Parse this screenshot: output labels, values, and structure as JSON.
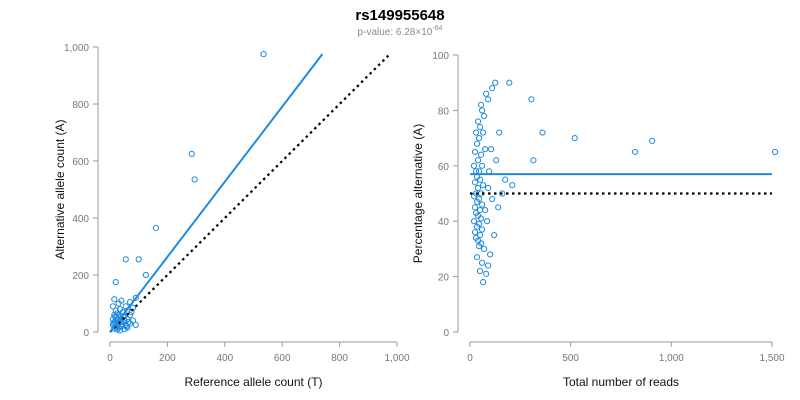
{
  "title": "rs149955648",
  "subtitle": {
    "prefix": "p-value: 6.28×10",
    "exponent": "-64"
  },
  "colors": {
    "points": "#1f8be0",
    "fit_line": "#1f8be0",
    "reference_line": "#000000",
    "axis": "#999999",
    "tick_label": "#777777"
  },
  "chart_data": [
    {
      "type": "scatter",
      "xlabel": "Reference allele count (T)",
      "ylabel": "Alternative allele count (A)",
      "xlim": [
        0,
        1000
      ],
      "ylim": [
        0,
        1000
      ],
      "xticks": [
        0,
        200,
        400,
        600,
        800,
        1000
      ],
      "xtick_labels": [
        "0",
        "200",
        "400",
        "600",
        "800",
        "1,000"
      ],
      "yticks": [
        0,
        200,
        400,
        600,
        800,
        1000
      ],
      "ytick_labels": [
        "0",
        "200",
        "400",
        "600",
        "800",
        "1,000"
      ],
      "grid": false,
      "fit_line": {
        "style": "solid",
        "x": [
          0,
          740
        ],
        "y": [
          0,
          975
        ]
      },
      "reference_line": {
        "style": "dotted",
        "x": [
          0,
          970
        ],
        "y": [
          0,
          970
        ]
      },
      "points": [
        [
          535,
          975
        ],
        [
          285,
          625
        ],
        [
          295,
          535
        ],
        [
          160,
          365
        ],
        [
          100,
          255
        ],
        [
          55,
          255
        ],
        [
          125,
          200
        ],
        [
          20,
          175
        ],
        [
          90,
          120
        ],
        [
          15,
          115
        ],
        [
          40,
          110
        ],
        [
          70,
          105
        ],
        [
          30,
          100
        ],
        [
          55,
          90
        ],
        [
          10,
          90
        ],
        [
          80,
          85
        ],
        [
          35,
          80
        ],
        [
          20,
          75
        ],
        [
          60,
          75
        ],
        [
          45,
          70
        ],
        [
          25,
          65
        ],
        [
          15,
          60
        ],
        [
          70,
          60
        ],
        [
          35,
          55
        ],
        [
          50,
          55
        ],
        [
          20,
          50
        ],
        [
          10,
          45
        ],
        [
          40,
          45
        ],
        [
          60,
          45
        ],
        [
          25,
          40
        ],
        [
          15,
          35
        ],
        [
          45,
          35
        ],
        [
          30,
          30
        ],
        [
          70,
          30
        ],
        [
          10,
          25
        ],
        [
          55,
          25
        ],
        [
          90,
          25
        ],
        [
          20,
          20
        ],
        [
          40,
          20
        ],
        [
          30,
          15
        ],
        [
          15,
          12
        ],
        [
          50,
          10
        ],
        [
          25,
          8
        ],
        [
          35,
          5
        ],
        [
          60,
          15
        ],
        [
          80,
          40
        ],
        [
          20,
          30
        ],
        [
          45,
          55
        ],
        [
          30,
          45
        ],
        [
          65,
          35
        ],
        [
          12,
          30
        ],
        [
          28,
          25
        ],
        [
          38,
          35
        ],
        [
          50,
          40
        ],
        [
          22,
          15
        ],
        [
          42,
          28
        ],
        [
          58,
          20
        ],
        [
          18,
          55
        ],
        [
          33,
          60
        ],
        [
          75,
          70
        ]
      ]
    },
    {
      "type": "scatter",
      "xlabel": "Total number of reads",
      "ylabel": "Percentage alternative (A)",
      "xlim": [
        0,
        1500
      ],
      "ylim": [
        0,
        100
      ],
      "xticks": [
        0,
        500,
        1000,
        1500
      ],
      "xtick_labels": [
        "0",
        "500",
        "1,000",
        "1,500"
      ],
      "yticks": [
        0,
        20,
        40,
        60,
        80,
        100
      ],
      "ytick_labels": [
        "0",
        "20",
        "40",
        "60",
        "80",
        "100"
      ],
      "grid": false,
      "fit_line": {
        "style": "solid",
        "x": [
          0,
          1500
        ],
        "y": [
          57,
          57
        ]
      },
      "reference_line": {
        "style": "dotted",
        "x": [
          0,
          1500
        ],
        "y": [
          50,
          50
        ]
      },
      "points": [
        [
          1515,
          65
        ],
        [
          905,
          69
        ],
        [
          820,
          65
        ],
        [
          520,
          70
        ],
        [
          360,
          72
        ],
        [
          305,
          84
        ],
        [
          315,
          62
        ],
        [
          195,
          90
        ],
        [
          125,
          90
        ],
        [
          110,
          88
        ],
        [
          80,
          86
        ],
        [
          90,
          84
        ],
        [
          55,
          82
        ],
        [
          60,
          80
        ],
        [
          70,
          78
        ],
        [
          40,
          76
        ],
        [
          50,
          74
        ],
        [
          30,
          72
        ],
        [
          65,
          72
        ],
        [
          45,
          70
        ],
        [
          35,
          68
        ],
        [
          75,
          66
        ],
        [
          25,
          65
        ],
        [
          55,
          64
        ],
        [
          40,
          62
        ],
        [
          20,
          60
        ],
        [
          60,
          60
        ],
        [
          30,
          58
        ],
        [
          45,
          58
        ],
        [
          35,
          56
        ],
        [
          50,
          55
        ],
        [
          25,
          54
        ],
        [
          65,
          53
        ],
        [
          40,
          52
        ],
        [
          30,
          50
        ],
        [
          55,
          50
        ],
        [
          20,
          49
        ],
        [
          45,
          48
        ],
        [
          35,
          47
        ],
        [
          60,
          46
        ],
        [
          25,
          45
        ],
        [
          50,
          44
        ],
        [
          30,
          43
        ],
        [
          40,
          42
        ],
        [
          55,
          41
        ],
        [
          20,
          40
        ],
        [
          45,
          39
        ],
        [
          35,
          38
        ],
        [
          60,
          37
        ],
        [
          25,
          36
        ],
        [
          50,
          35
        ],
        [
          30,
          34
        ],
        [
          40,
          33
        ],
        [
          55,
          32
        ],
        [
          45,
          31
        ],
        [
          70,
          30
        ],
        [
          100,
          28
        ],
        [
          35,
          27
        ],
        [
          60,
          25
        ],
        [
          90,
          24
        ],
        [
          50,
          22
        ],
        [
          80,
          21
        ],
        [
          65,
          18
        ],
        [
          140,
          45
        ],
        [
          160,
          50
        ],
        [
          175,
          55
        ],
        [
          210,
          53
        ],
        [
          130,
          62
        ],
        [
          110,
          48
        ],
        [
          95,
          58
        ],
        [
          85,
          40
        ],
        [
          120,
          35
        ],
        [
          105,
          66
        ],
        [
          145,
          72
        ],
        [
          75,
          44
        ],
        [
          90,
          52
        ]
      ]
    }
  ]
}
